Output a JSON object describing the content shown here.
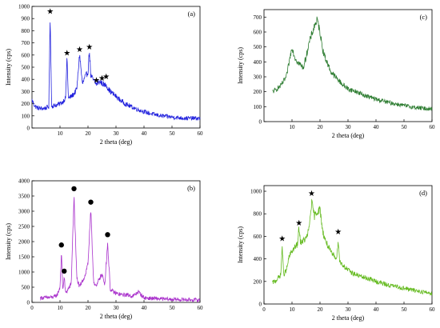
{
  "chart_data": [
    {
      "type": "line",
      "panel": "(a)",
      "xlabel": "2 theta (deg)",
      "ylabel": "Intensity (cps)",
      "xlim": [
        0,
        60
      ],
      "ylim": [
        0,
        1000
      ],
      "xticks": [
        10,
        20,
        30,
        40,
        50,
        60
      ],
      "yticks": [
        0,
        100,
        200,
        300,
        400,
        500,
        600,
        700,
        800,
        900,
        1000
      ],
      "line_color": "#2222dd",
      "marker": "star",
      "marker_peaks": [
        [
          6.5,
          940
        ],
        [
          12.5,
          600
        ],
        [
          17,
          628
        ],
        [
          20.5,
          648
        ],
        [
          23,
          375
        ],
        [
          25,
          392
        ],
        [
          26.5,
          405
        ]
      ],
      "x": [
        0,
        1,
        2,
        3,
        4,
        5,
        6,
        6.5,
        7,
        8,
        9,
        10,
        11,
        12,
        12.5,
        13,
        14,
        15,
        16,
        17,
        18,
        19,
        20,
        20.5,
        21,
        22,
        23,
        24,
        25,
        26,
        26.5,
        27,
        28,
        30,
        32,
        34,
        36,
        38,
        40,
        42,
        44,
        46,
        48,
        50,
        52,
        54,
        56,
        58,
        60
      ],
      "y": [
        230,
        180,
        165,
        160,
        160,
        165,
        175,
        930,
        180,
        185,
        190,
        200,
        215,
        250,
        590,
        240,
        260,
        280,
        320,
        610,
        360,
        420,
        460,
        640,
        430,
        390,
        360,
        380,
        370,
        350,
        360,
        330,
        300,
        260,
        220,
        190,
        170,
        150,
        135,
        120,
        110,
        100,
        95,
        90,
        85,
        82,
        80,
        80,
        78
      ]
    },
    {
      "type": "line",
      "panel": "(b)",
      "xlabel": "2 theta (deg)",
      "ylabel": "Intensity (cps)",
      "xlim": [
        0,
        60
      ],
      "ylim": [
        0,
        4000
      ],
      "xticks": [
        0,
        10,
        20,
        30,
        40,
        50,
        60
      ],
      "yticks": [
        0,
        500,
        1000,
        1500,
        2000,
        2500,
        3000,
        3500,
        4000
      ],
      "line_color": "#aa33cc",
      "marker": "dot",
      "marker_peaks": [
        [
          10.5,
          1810
        ],
        [
          11.5,
          950
        ],
        [
          15,
          3660
        ],
        [
          21,
          3220
        ],
        [
          27,
          2150
        ]
      ],
      "x": [
        3,
        6,
        8,
        9,
        10,
        10.5,
        11,
        11.5,
        12,
        13,
        14,
        15,
        16,
        17,
        18,
        19,
        20,
        21,
        22,
        23,
        24,
        25,
        26,
        27,
        28,
        29,
        30,
        32,
        34,
        36,
        38,
        40,
        45,
        50,
        55,
        60
      ],
      "y": [
        150,
        160,
        180,
        250,
        500,
        1600,
        400,
        850,
        300,
        450,
        600,
        3500,
        800,
        500,
        700,
        900,
        1300,
        3000,
        700,
        500,
        800,
        900,
        600,
        1950,
        400,
        350,
        300,
        250,
        250,
        200,
        350,
        150,
        120,
        100,
        90,
        80
      ]
    },
    {
      "type": "line",
      "panel": "(c)",
      "xlabel": "2 theta (deg)",
      "ylabel": "Intensity (cps)",
      "xlim": [
        0,
        60
      ],
      "ylim": [
        0,
        750
      ],
      "xticks": [
        10,
        20,
        30,
        40,
        50,
        60
      ],
      "yticks": [
        0,
        100,
        200,
        300,
        400,
        500,
        600,
        700
      ],
      "line_color": "#2e7d32",
      "marker": "none",
      "marker_peaks": [],
      "x": [
        3,
        4,
        6,
        8,
        9,
        10,
        11,
        12,
        13,
        14,
        15,
        16,
        17,
        18,
        19,
        20,
        21,
        22,
        24,
        26,
        28,
        30,
        33,
        36,
        40,
        44,
        48,
        52,
        56,
        60
      ],
      "y": [
        200,
        210,
        240,
        300,
        400,
        500,
        430,
        400,
        380,
        360,
        430,
        520,
        580,
        640,
        680,
        600,
        480,
        420,
        330,
        290,
        250,
        220,
        200,
        175,
        150,
        130,
        115,
        100,
        90,
        85
      ]
    },
    {
      "type": "line",
      "panel": "(d)",
      "xlabel": "2 theta (deg)",
      "ylabel": "Intensity (cps)",
      "xlim": [
        0,
        60
      ],
      "ylim": [
        0,
        1050
      ],
      "xticks": [
        0,
        10,
        20,
        30,
        40,
        50,
        60
      ],
      "yticks": [
        0,
        200,
        400,
        600,
        800,
        1000
      ],
      "line_color": "#66bb22",
      "marker": "star",
      "marker_peaks": [
        [
          6.5,
          560
        ],
        [
          12.5,
          700
        ],
        [
          17,
          960
        ],
        [
          26.5,
          620
        ]
      ],
      "x": [
        3,
        4,
        5,
        6,
        6.5,
        7,
        8,
        9,
        10,
        11,
        12,
        12.5,
        13,
        14,
        15,
        16,
        17,
        18,
        19,
        20,
        21,
        22,
        24,
        26,
        26.5,
        27,
        28,
        30,
        32,
        35,
        38,
        40,
        44,
        48,
        52,
        56,
        60
      ],
      "y": [
        190,
        200,
        230,
        260,
        520,
        260,
        300,
        420,
        470,
        500,
        530,
        680,
        550,
        560,
        580,
        650,
        900,
        780,
        820,
        840,
        640,
        560,
        450,
        410,
        580,
        380,
        350,
        300,
        270,
        240,
        220,
        200,
        170,
        150,
        130,
        110,
        95
      ]
    }
  ]
}
